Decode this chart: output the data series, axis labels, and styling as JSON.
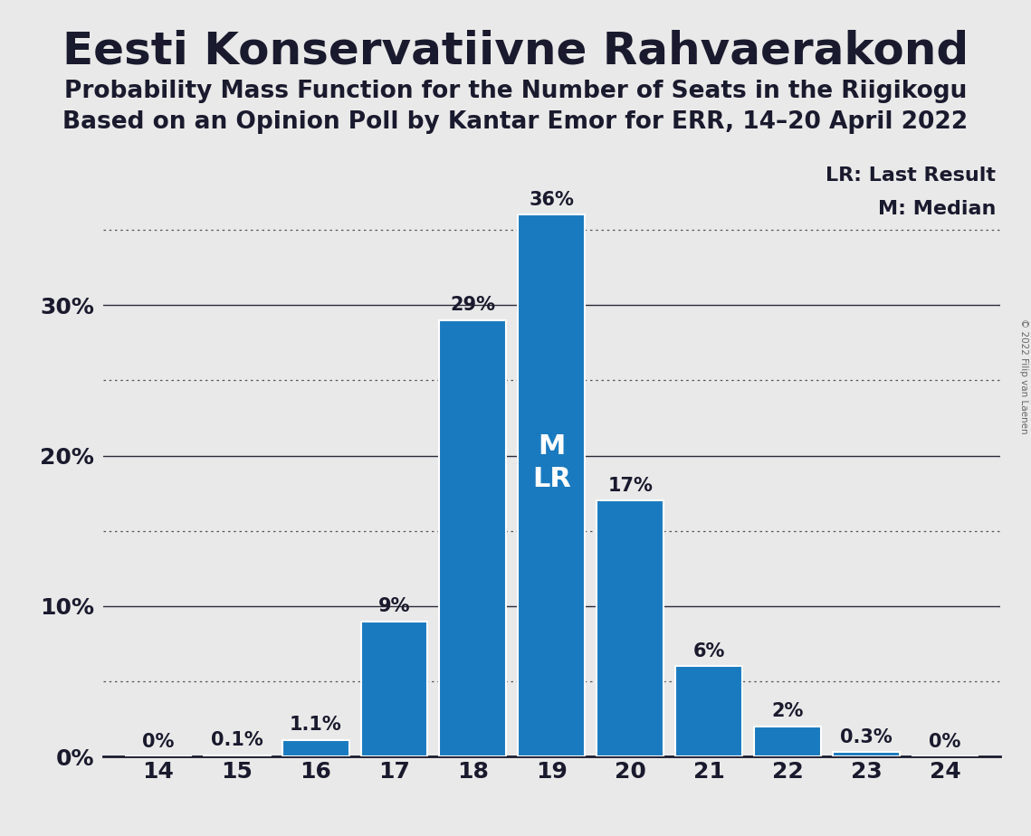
{
  "title": "Eesti Konservatiivne Rahvaerakond",
  "subtitle1": "Probability Mass Function for the Number of Seats in the Riigikogu",
  "subtitle2": "Based on an Opinion Poll by Kantar Emor for ERR, 14–20 April 2022",
  "copyright": "© 2022 Filip van Laenen",
  "seats": [
    14,
    15,
    16,
    17,
    18,
    19,
    20,
    21,
    22,
    23,
    24
  ],
  "probabilities": [
    0.0,
    0.1,
    1.1,
    9.0,
    29.0,
    36.0,
    17.0,
    6.0,
    2.0,
    0.3,
    0.0
  ],
  "labels": [
    "0%",
    "0.1%",
    "1.1%",
    "9%",
    "29%",
    "36%",
    "17%",
    "6%",
    "2%",
    "0.3%",
    "0%"
  ],
  "bar_color": "#1a7abf",
  "background_color": "#e9e9e9",
  "median_seat": 19,
  "last_result_seat": 19,
  "solid_gridlines": [
    10,
    20,
    30
  ],
  "dotted_gridlines": [
    5,
    15,
    25,
    35
  ],
  "ytick_positions": [
    0,
    10,
    20,
    30
  ],
  "ylim": [
    0,
    40
  ],
  "xlim_left": 13.3,
  "xlim_right": 24.7,
  "solid_grid_color": "#2a2a3a",
  "dotted_grid_color": "#555555",
  "text_color": "#1a1a2e",
  "lr_label": "LR: Last Result",
  "m_label": "M: Median",
  "bar_label_fontsize": 15,
  "axis_fontsize": 18,
  "title_fontsize": 36,
  "subtitle_fontsize": 19,
  "ml_fontsize": 22,
  "legend_fontsize": 16
}
